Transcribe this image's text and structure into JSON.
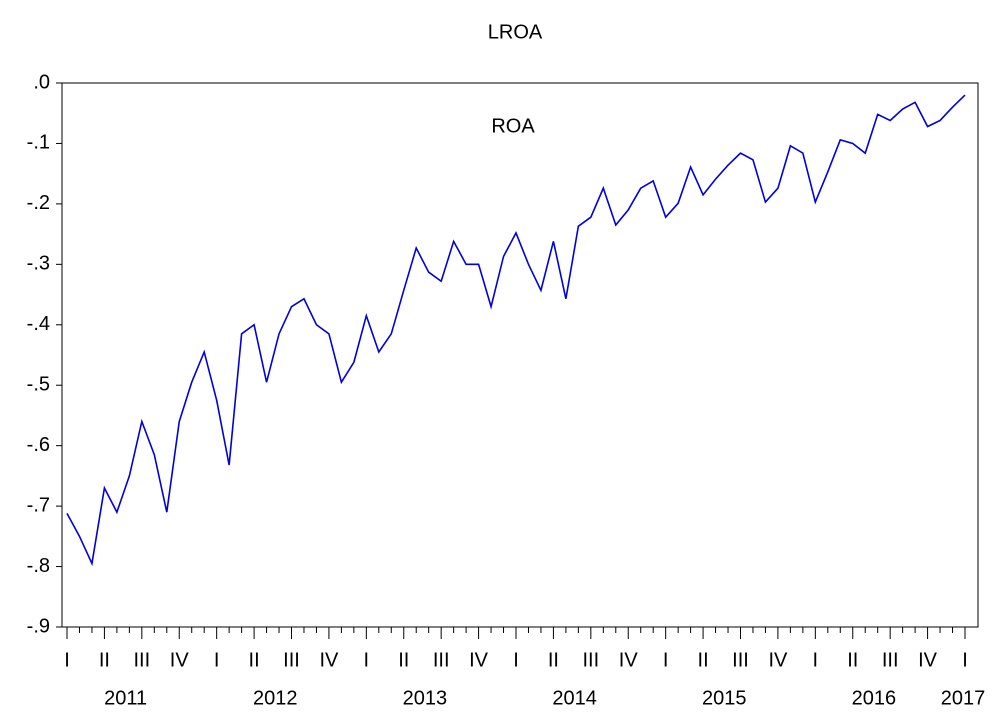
{
  "chart_data": {
    "type": "line",
    "title": "LROA",
    "annotation": "ROA",
    "categories": [
      "I",
      null,
      null,
      "II",
      null,
      null,
      "III",
      null,
      null,
      "IV",
      null,
      null,
      "I",
      null,
      null,
      "II",
      null,
      null,
      "III",
      null,
      null,
      "IV",
      null,
      null,
      "I",
      null,
      null,
      "II",
      null,
      null,
      "III",
      null,
      null,
      "IV",
      null,
      null,
      "I",
      null,
      null,
      "II",
      null,
      null,
      "III",
      null,
      null,
      "IV",
      null,
      null,
      "I",
      null,
      null,
      "II",
      null,
      null,
      "III",
      null,
      null,
      "IV",
      null,
      null,
      "I",
      null,
      null,
      "II",
      null,
      null,
      "III",
      null,
      null,
      "IV",
      null,
      null,
      "I"
    ],
    "year_labels": [
      "2011",
      "2012",
      "2013",
      "2014",
      "2015",
      "2016",
      "2017"
    ],
    "series": [
      {
        "name": "ROA",
        "color": "#0000dd",
        "values": [
          -0.712,
          -0.75,
          -0.795,
          -0.67,
          -0.71,
          -0.65,
          -0.56,
          -0.615,
          -0.71,
          -0.56,
          -0.495,
          -0.445,
          -0.525,
          -0.632,
          -0.415,
          -0.4,
          -0.495,
          -0.415,
          -0.37,
          -0.357,
          -0.4,
          -0.415,
          -0.495,
          -0.462,
          -0.385,
          -0.445,
          -0.415,
          -0.343,
          -0.273,
          -0.313,
          -0.328,
          -0.262,
          -0.3,
          -0.3,
          -0.37,
          -0.287,
          -0.248,
          -0.3,
          -0.343,
          -0.262,
          -0.357,
          -0.237,
          -0.222,
          -0.174,
          -0.235,
          -0.21,
          -0.174,
          -0.162,
          -0.222,
          -0.199,
          -0.139,
          -0.185,
          -0.159,
          -0.136,
          -0.116,
          -0.127,
          -0.197,
          -0.174,
          -0.104,
          -0.116,
          -0.197,
          -0.147,
          -0.094,
          -0.1,
          -0.116,
          -0.052,
          -0.062,
          -0.043,
          -0.032,
          -0.072,
          -0.062,
          -0.04,
          -0.02
        ]
      }
    ],
    "ylim": [
      -0.9,
      0
    ],
    "yticks": [
      {
        "value": 0,
        "label": ".0"
      },
      {
        "value": -0.1,
        "label": "-.1"
      },
      {
        "value": -0.2,
        "label": "-.2"
      },
      {
        "value": -0.3,
        "label": "-.3"
      },
      {
        "value": -0.4,
        "label": "-.4"
      },
      {
        "value": -0.5,
        "label": "-.5"
      },
      {
        "value": -0.6,
        "label": "-.6"
      },
      {
        "value": -0.7,
        "label": "-.7"
      },
      {
        "value": -0.8,
        "label": "-.8"
      },
      {
        "value": -0.9,
        "label": "-.9"
      }
    ],
    "grid": false
  }
}
